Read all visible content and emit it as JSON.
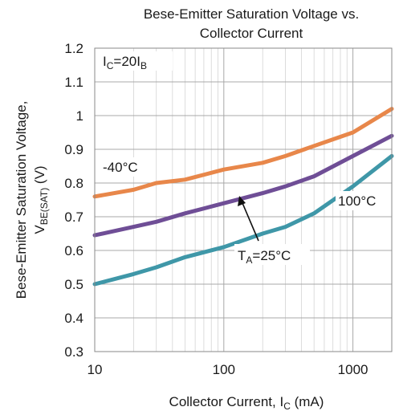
{
  "chart_data": {
    "type": "line",
    "title_line1": "Bese-Emitter Saturation Voltage vs.",
    "title_line2": "Collector Current",
    "xlabel": "Collector Current, I",
    "xlabel_sub": "C",
    "xlabel_unit": " (mA)",
    "ylabel_line1": "Bese-Emitter Saturation Voltage,",
    "ylabel_v": "V",
    "ylabel_sub": "BE(SAT)",
    "ylabel_unit": " (V)",
    "x_scale": "log",
    "xlim": [
      10,
      2000
    ],
    "ylim": [
      0.3,
      1.2
    ],
    "x_ticks": [
      "10",
      "100",
      "1000"
    ],
    "y_ticks": [
      "0.3",
      "0.4",
      "0.5",
      "0.6",
      "0.7",
      "0.8",
      "0.9",
      "1",
      "1.1",
      "1.2"
    ],
    "grid": true,
    "condition": {
      "i1": "I",
      "s1": "C",
      "mid": "=20I",
      "s2": "B"
    },
    "series": [
      {
        "name": "-40°C",
        "color": "#e8874a",
        "x": [
          10,
          20,
          30,
          50,
          100,
          200,
          300,
          500,
          1000,
          2000
        ],
        "y": [
          0.76,
          0.78,
          0.8,
          0.81,
          0.84,
          0.86,
          0.88,
          0.91,
          0.95,
          1.02
        ]
      },
      {
        "name": "T_A=25°C",
        "color": "#6f4e96",
        "x": [
          10,
          20,
          30,
          50,
          100,
          200,
          300,
          500,
          1000,
          2000
        ],
        "y": [
          0.645,
          0.67,
          0.685,
          0.71,
          0.74,
          0.77,
          0.79,
          0.82,
          0.88,
          0.94
        ]
      },
      {
        "name": "100°C",
        "color": "#3f97a8",
        "x": [
          10,
          20,
          30,
          50,
          100,
          200,
          300,
          500,
          1000,
          2000
        ],
        "y": [
          0.5,
          0.53,
          0.55,
          0.58,
          0.61,
          0.65,
          0.67,
          0.71,
          0.79,
          0.88
        ]
      }
    ],
    "labels": {
      "cold": "-40°C",
      "hot": "100°C",
      "room_t": "T",
      "room_sub": "A",
      "room_rest": "=25°C"
    }
  }
}
